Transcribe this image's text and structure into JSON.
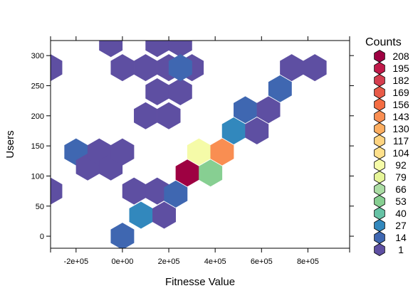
{
  "chart_data": {
    "type": "hexbin",
    "xlabel": "Fitnesse Value",
    "ylabel": "Users",
    "xlim": [
      -310000,
      980000
    ],
    "ylim": [
      -20,
      325
    ],
    "x_ticks": [
      {
        "value": -200000,
        "label": "-2e+05"
      },
      {
        "value": 0,
        "label": "0e+00"
      },
      {
        "value": 200000,
        "label": "2e+05"
      },
      {
        "value": 400000,
        "label": "4e+05"
      },
      {
        "value": 600000,
        "label": "6e+05"
      },
      {
        "value": 800000,
        "label": "8e+05"
      }
    ],
    "y_ticks": [
      0,
      50,
      100,
      150,
      200,
      250,
      300
    ],
    "legend": {
      "title": "Counts",
      "placement": "right",
      "entries": [
        {
          "label": "208",
          "color": "#9e0142"
        },
        {
          "label": "195",
          "color": "#c11a4a"
        },
        {
          "label": "182",
          "color": "#d53e4f"
        },
        {
          "label": "169",
          "color": "#e85b48"
        },
        {
          "label": "156",
          "color": "#f46d43"
        },
        {
          "label": "143",
          "color": "#f98e52"
        },
        {
          "label": "130",
          "color": "#fdae61"
        },
        {
          "label": "117",
          "color": "#fed481"
        },
        {
          "label": "104",
          "color": "#fee08b"
        },
        {
          "label": "92",
          "color": "#f5fba8"
        },
        {
          "label": "79",
          "color": "#e6f598"
        },
        {
          "label": "66",
          "color": "#abdda4"
        },
        {
          "label": "53",
          "color": "#87cf92"
        },
        {
          "label": "40",
          "color": "#66c2a5"
        },
        {
          "label": "27",
          "color": "#3288bd"
        },
        {
          "label": "14",
          "color": "#3f67b1"
        },
        {
          "label": "1",
          "color": "#5e4fa2"
        }
      ]
    },
    "cells": [
      {
        "x": -310000,
        "y": 280,
        "count": 1
      },
      {
        "x": -310000,
        "y": 75,
        "count": 1
      },
      {
        "x": -200000,
        "y": 140,
        "count": 14
      },
      {
        "x": -150000,
        "y": 115,
        "count": 1
      },
      {
        "x": -100000,
        "y": 140,
        "count": 1
      },
      {
        "x": -50000,
        "y": 115,
        "count": 1
      },
      {
        "x": 0,
        "y": 140,
        "count": 1
      },
      {
        "x": -50000,
        "y": 320,
        "count": 1
      },
      {
        "x": 0,
        "y": 280,
        "count": 1
      },
      {
        "x": 50000,
        "y": 75,
        "count": 1
      },
      {
        "x": 150000,
        "y": 75,
        "count": 1
      },
      {
        "x": 100000,
        "y": 280,
        "count": 1
      },
      {
        "x": 150000,
        "y": 320,
        "count": 1
      },
      {
        "x": 250000,
        "y": 320,
        "count": 1
      },
      {
        "x": 200000,
        "y": 280,
        "count": 1
      },
      {
        "x": 300000,
        "y": 280,
        "count": 1
      },
      {
        "x": 150000,
        "y": 240,
        "count": 1
      },
      {
        "x": 250000,
        "y": 240,
        "count": 1
      },
      {
        "x": 200000,
        "y": 200,
        "count": 1
      },
      {
        "x": 100000,
        "y": 200,
        "count": 1
      },
      {
        "x": 250000,
        "y": 280,
        "count": 14
      },
      {
        "x": 0,
        "y": 0,
        "count": 14
      },
      {
        "x": 80000,
        "y": 35,
        "count": 30
      },
      {
        "x": 180000,
        "y": 35,
        "count": 1
      },
      {
        "x": 230000,
        "y": 70,
        "count": 14
      },
      {
        "x": 280000,
        "y": 105,
        "count": 208
      },
      {
        "x": 380000,
        "y": 105,
        "count": 60
      },
      {
        "x": 330000,
        "y": 140,
        "count": 95
      },
      {
        "x": 430000,
        "y": 140,
        "count": 150
      },
      {
        "x": 480000,
        "y": 175,
        "count": 30
      },
      {
        "x": 580000,
        "y": 175,
        "count": 1
      },
      {
        "x": 530000,
        "y": 210,
        "count": 14
      },
      {
        "x": 630000,
        "y": 210,
        "count": 1
      },
      {
        "x": 680000,
        "y": 245,
        "count": 14
      },
      {
        "x": 730000,
        "y": 280,
        "count": 1
      },
      {
        "x": 830000,
        "y": 280,
        "count": 1
      }
    ]
  }
}
